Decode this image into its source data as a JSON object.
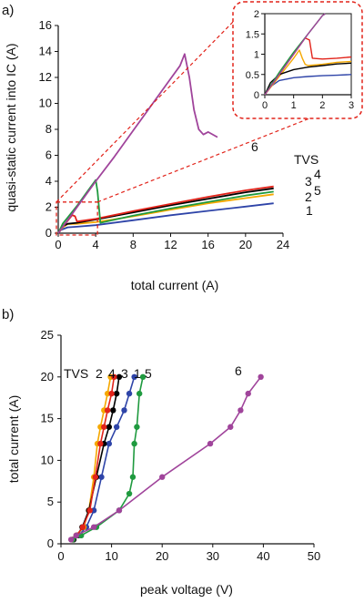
{
  "figure": {
    "panel_a_label": "a)",
    "panel_b_label": "b)",
    "legend_title_a": "TVS",
    "legend_title_b": "TVS"
  },
  "colors": {
    "1": "#2e44a8",
    "2": "#f5a800",
    "3": "#000000",
    "4": "#e2231a",
    "5": "#1f9a3f",
    "6": "#a0449b",
    "zoom_box": "#e2231a"
  },
  "chart_data": [
    {
      "id": "a_main",
      "type": "line",
      "xlabel": "total current (A)",
      "ylabel": "quasi-static current into IC (A)",
      "xlim": [
        0,
        24
      ],
      "ylim": [
        0,
        16
      ],
      "xticks": [
        "0",
        "4",
        "8",
        "12",
        "16",
        "20",
        "24"
      ],
      "yticks": [
        "0",
        "2",
        "4",
        "6",
        "8",
        "10",
        "12",
        "14",
        "16"
      ],
      "grid": false,
      "series": [
        {
          "name": "1",
          "x": [
            0,
            0.3,
            1,
            2,
            4,
            8,
            12,
            16,
            20,
            23
          ],
          "y": [
            0,
            0.25,
            0.45,
            0.5,
            0.62,
            1.0,
            1.38,
            1.72,
            2.05,
            2.3
          ]
        },
        {
          "name": "2",
          "x": [
            0,
            0.5,
            1,
            2,
            4,
            8,
            12,
            16,
            20,
            23
          ],
          "y": [
            0,
            0.45,
            0.7,
            0.72,
            0.85,
            1.3,
            1.8,
            2.3,
            2.7,
            3.0
          ]
        },
        {
          "name": "3",
          "x": [
            0,
            0.5,
            1,
            2,
            4,
            8,
            12,
            16,
            20,
            23
          ],
          "y": [
            0,
            0.55,
            0.72,
            0.8,
            1.05,
            1.6,
            2.15,
            2.65,
            3.15,
            3.45
          ]
        },
        {
          "name": "4",
          "x": [
            0,
            0.5,
            1,
            1.5,
            1.8,
            2,
            4,
            8,
            12,
            16,
            20,
            23
          ],
          "y": [
            0,
            0.55,
            0.95,
            1.4,
            1.3,
            0.9,
            1.1,
            1.7,
            2.25,
            2.8,
            3.3,
            3.6
          ]
        },
        {
          "name": "5",
          "x": [
            0,
            0.5,
            1,
            2,
            3,
            4,
            4.2,
            4.5,
            8,
            12,
            16,
            20,
            23
          ],
          "y": [
            0,
            0.75,
            1.2,
            2.1,
            3.1,
            4.1,
            3.2,
            0.8,
            1.35,
            1.9,
            2.4,
            2.9,
            3.2
          ]
        },
        {
          "name": "6",
          "x": [
            0,
            1,
            2,
            4,
            6,
            8,
            10,
            12,
            13,
            13.5,
            14,
            14.5,
            15,
            15.5,
            16,
            17
          ],
          "y": [
            0,
            1.0,
            2.0,
            4.0,
            5.9,
            7.9,
            9.9,
            11.9,
            12.9,
            13.8,
            12.0,
            9.5,
            8.0,
            7.6,
            7.8,
            7.4
          ]
        }
      ],
      "zoom_region": {
        "x": [
          0,
          4
        ],
        "y": [
          0,
          2.4
        ]
      }
    },
    {
      "id": "a_inset",
      "type": "line",
      "xlim": [
        0,
        3
      ],
      "ylim": [
        0,
        2
      ],
      "xticks": [
        "0",
        "1",
        "2",
        "3"
      ],
      "yticks": [
        "0",
        "0.5",
        "1",
        "1.5",
        "2"
      ],
      "series": [
        {
          "name": "1",
          "x": [
            0,
            0.2,
            0.5,
            1,
            1.5,
            2,
            2.5,
            3
          ],
          "y": [
            0,
            0.2,
            0.35,
            0.42,
            0.45,
            0.47,
            0.48,
            0.5
          ]
        },
        {
          "name": "2",
          "x": [
            0,
            0.5,
            1,
            1.2,
            1.3,
            1.4,
            1.5,
            2,
            2.5,
            3
          ],
          "y": [
            0,
            0.45,
            0.9,
            1.1,
            0.9,
            0.75,
            0.72,
            0.75,
            0.8,
            0.82
          ]
        },
        {
          "name": "3",
          "x": [
            0,
            0.2,
            0.5,
            1,
            1.5,
            2,
            2.5,
            3
          ],
          "y": [
            0,
            0.3,
            0.5,
            0.62,
            0.68,
            0.72,
            0.76,
            0.78
          ]
        },
        {
          "name": "4",
          "x": [
            0,
            0.5,
            1,
            1.4,
            1.55,
            1.65,
            2,
            2.5,
            3
          ],
          "y": [
            0,
            0.5,
            1.0,
            1.4,
            1.35,
            0.9,
            0.88,
            0.9,
            0.93
          ]
        },
        {
          "name": "5",
          "x": [
            0,
            0.5,
            1,
            1.5,
            2,
            2.1
          ],
          "y": [
            0,
            0.55,
            1.05,
            1.5,
            1.95,
            2.0
          ]
        },
        {
          "name": "6",
          "x": [
            0,
            0.5,
            1,
            1.5,
            2,
            2.1
          ],
          "y": [
            0,
            0.5,
            1.0,
            1.5,
            1.95,
            2.0
          ]
        }
      ]
    },
    {
      "id": "b",
      "type": "line",
      "xlabel": "peak voltage (V)",
      "ylabel": "total current (A)",
      "xlim": [
        0,
        50
      ],
      "ylim": [
        0,
        25
      ],
      "xticks": [
        "0",
        "10",
        "20",
        "30",
        "40",
        "50"
      ],
      "yticks": [
        "0",
        "5",
        "10",
        "15",
        "20",
        "25"
      ],
      "grid": false,
      "series": [
        {
          "name": "1",
          "x": [
            2.5,
            3.5,
            5,
            6.5,
            8,
            9.5,
            11,
            12.5,
            13.5,
            14.5
          ],
          "y": [
            0.5,
            1,
            2,
            4,
            8,
            12,
            14,
            16,
            18,
            20
          ]
        },
        {
          "name": "2",
          "x": [
            2.2,
            3,
            4.5,
            5.5,
            6.5,
            7.2,
            7.8,
            8.5,
            9.2,
            9.8
          ],
          "y": [
            0.5,
            1,
            2,
            4,
            8,
            12,
            14,
            16,
            18,
            20
          ]
        },
        {
          "name": "3",
          "x": [
            2.5,
            3.2,
            4.2,
            5.5,
            7,
            8.5,
            9.5,
            10.3,
            11.0,
            11.5
          ],
          "y": [
            0.5,
            1,
            2,
            4,
            8,
            12,
            14,
            16,
            18,
            20
          ]
        },
        {
          "name": "4",
          "x": [
            2.3,
            3.1,
            4.3,
            5.7,
            6.8,
            7.8,
            8.5,
            9.2,
            10.0,
            10.5
          ],
          "y": [
            0.5,
            1,
            2,
            4,
            8,
            12,
            14,
            16,
            18,
            20
          ]
        },
        {
          "name": "5",
          "x": [
            2.3,
            4,
            7,
            11.5,
            13.5,
            14.2,
            14.5,
            15,
            15.5,
            16.2
          ],
          "y": [
            0.5,
            1,
            2,
            4,
            6,
            8,
            12,
            14,
            18,
            20
          ]
        },
        {
          "name": "6",
          "x": [
            2,
            3,
            6.5,
            11.5,
            20,
            29.5,
            33.5,
            35.5,
            37,
            39.5
          ],
          "y": [
            0.5,
            1,
            2,
            4,
            8,
            12,
            14,
            16,
            18,
            20
          ]
        }
      ]
    }
  ]
}
